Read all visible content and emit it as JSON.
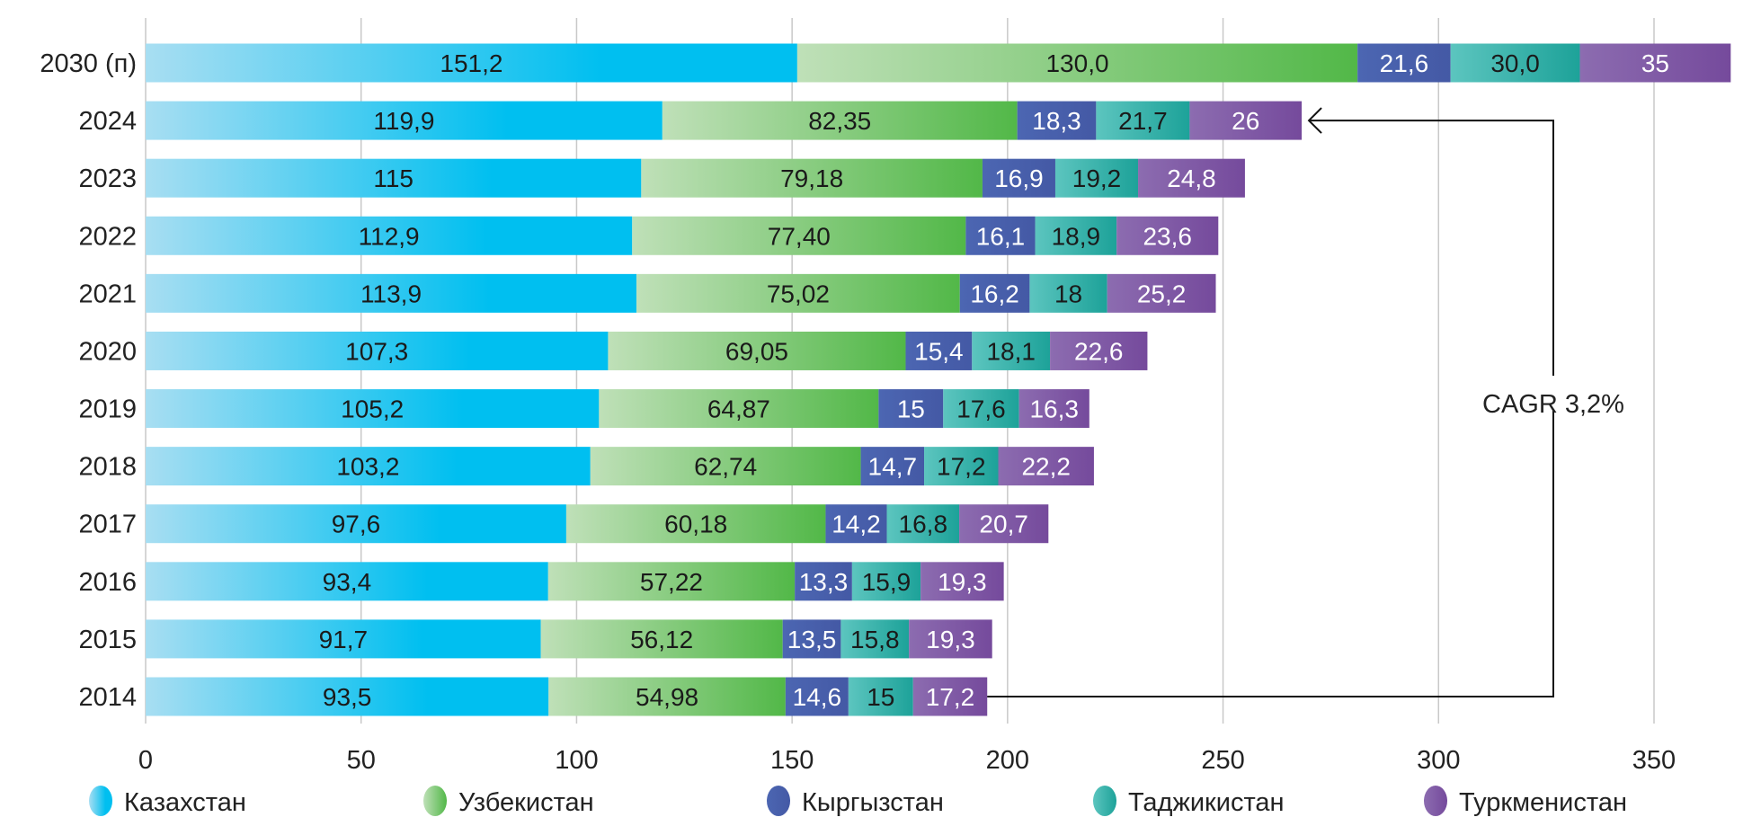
{
  "chart_data": {
    "type": "bar",
    "orientation": "horizontal",
    "stacked": true,
    "categories": [
      "2030 (п)",
      "2024",
      "2023",
      "2022",
      "2021",
      "2020",
      "2019",
      "2018",
      "2017",
      "2016",
      "2015",
      "2014"
    ],
    "series": [
      {
        "name": "Казахстан",
        "color": "#00bff0",
        "color_light": "#a8def2",
        "label_color": "#1a1a1a",
        "values": [
          151.2,
          119.9,
          115,
          112.9,
          113.9,
          107.3,
          105.2,
          103.2,
          97.6,
          93.4,
          91.7,
          93.5
        ],
        "labels": [
          "151,2",
          "119,9",
          "115",
          "112,9",
          "113,9",
          "107,3",
          "105,2",
          "103,2",
          "97,6",
          "93,4",
          "91,7",
          "93,5"
        ]
      },
      {
        "name": "Узбекистан",
        "color": "#52b848",
        "color_light": "#bfe0b8",
        "label_color": "#1a1a1a",
        "values": [
          130.0,
          82.35,
          79.18,
          77.4,
          75.02,
          69.05,
          64.87,
          62.74,
          60.18,
          57.22,
          56.12,
          54.98
        ],
        "labels": [
          "130,0",
          "82,35",
          "79,18",
          "77,40",
          "75,02",
          "69,05",
          "64,87",
          "62,74",
          "60,18",
          "57,22",
          "56,12",
          "54,98"
        ]
      },
      {
        "name": "Кыргызстан",
        "color": "#4459a5",
        "color_light": "#4c66b2",
        "label_color": "#ffffff",
        "values": [
          21.6,
          18.3,
          16.9,
          16.1,
          16.2,
          15.4,
          15,
          14.7,
          14.2,
          13.3,
          13.5,
          14.6
        ],
        "labels": [
          "21,6",
          "18,3",
          "16,9",
          "16,1",
          "16,2",
          "15,4",
          "15",
          "14,7",
          "14,2",
          "13,3",
          "13,5",
          "14,6"
        ]
      },
      {
        "name": "Таджикистан",
        "color": "#1da299",
        "color_light": "#5cc5bf",
        "label_color": "#1a1a1a",
        "values": [
          30.0,
          21.7,
          19.2,
          18.9,
          18,
          18.1,
          17.6,
          17.2,
          16.8,
          15.9,
          15.8,
          15
        ],
        "labels": [
          "30,0",
          "21,7",
          "19,2",
          "18,9",
          "18",
          "18,1",
          "17,6",
          "17,2",
          "16,8",
          "15,9",
          "15,8",
          "15"
        ]
      },
      {
        "name": "Туркменистан",
        "color": "#754a9c",
        "color_light": "#8c6cb0",
        "label_color": "#ffffff",
        "values": [
          35,
          26,
          24.8,
          23.6,
          25.2,
          22.6,
          16.3,
          22.2,
          20.7,
          19.3,
          19.3,
          17.2
        ],
        "labels": [
          "35",
          "26",
          "24,8",
          "23,6",
          "25,2",
          "22,6",
          "16,3",
          "22,2",
          "20,7",
          "19,3",
          "19,3",
          "17,2"
        ]
      }
    ],
    "xlim": [
      0,
      370
    ],
    "xticks": [
      0,
      50,
      100,
      150,
      200,
      250,
      300,
      350
    ],
    "xtick_labels": [
      "0",
      "50",
      "100",
      "150",
      "200",
      "250",
      "300",
      "350"
    ],
    "grid": "vertical",
    "legend": "bottom",
    "annotation": {
      "text": "CAGR 3,2%",
      "from": "2014",
      "to": "2024"
    }
  }
}
